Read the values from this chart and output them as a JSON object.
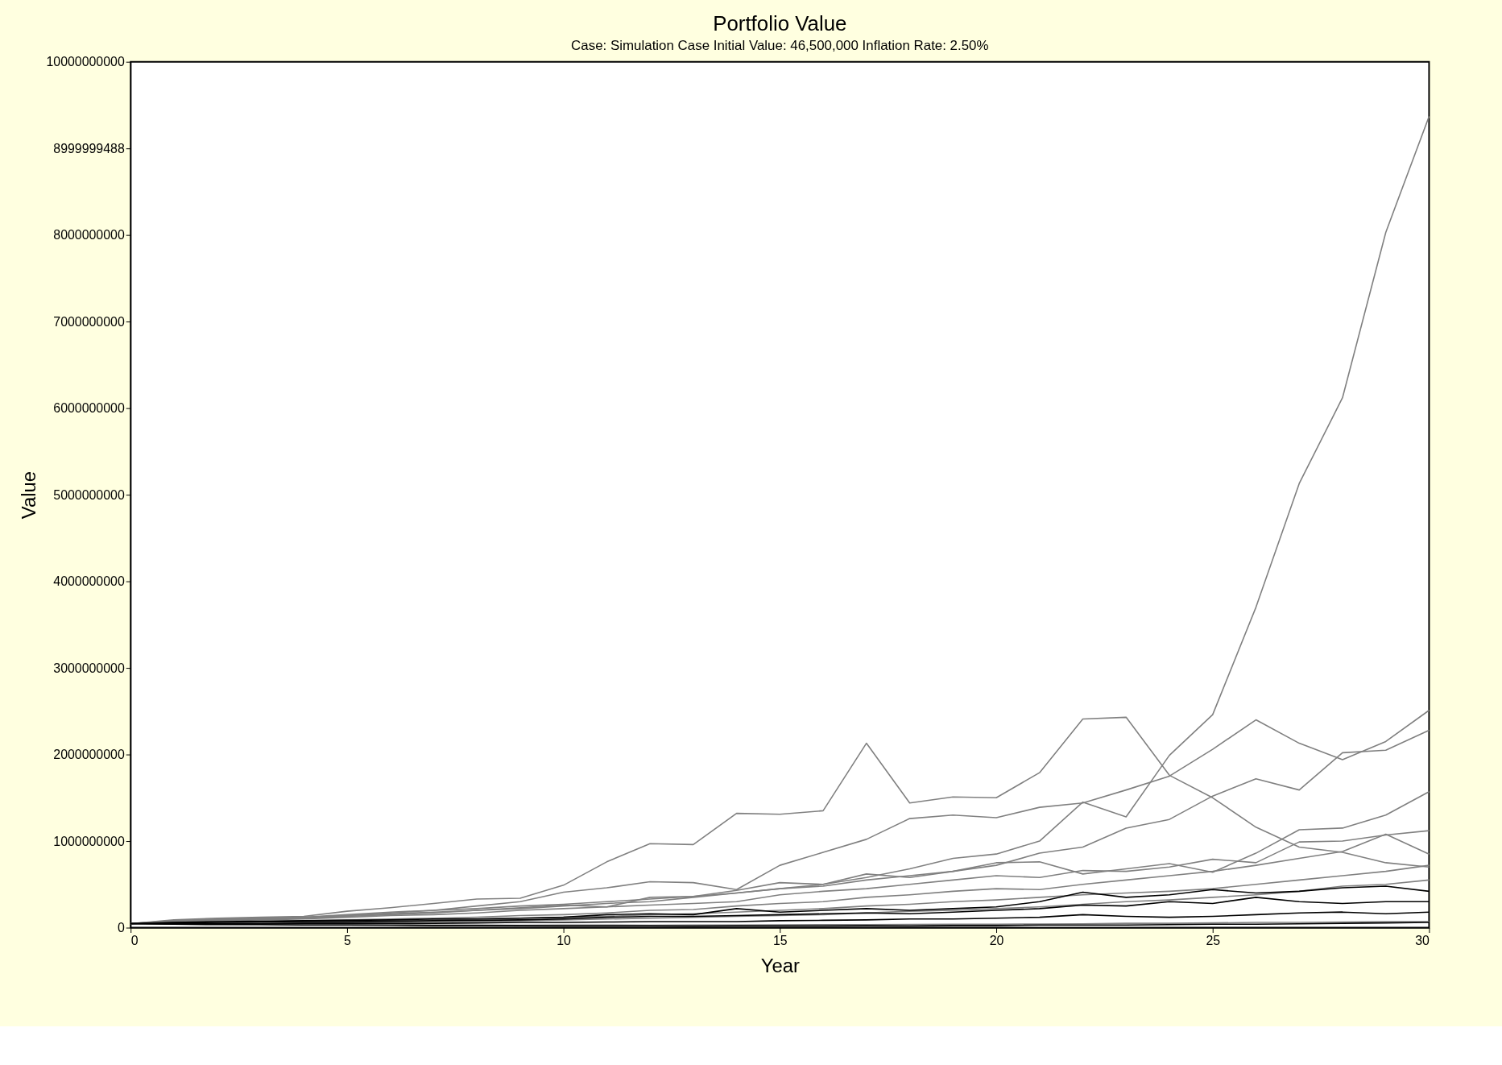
{
  "chart_data": {
    "type": "line",
    "title": "Portfolio Value",
    "subtitle": "Case: Simulation Case     Initial Value: 46,500,000     Inflation Rate: 2.50%",
    "xlabel": "Year",
    "ylabel": "Value",
    "x": [
      0,
      1,
      2,
      3,
      4,
      5,
      6,
      7,
      8,
      9,
      10,
      11,
      12,
      13,
      14,
      15,
      16,
      17,
      18,
      19,
      20,
      21,
      22,
      23,
      24,
      25,
      26,
      27,
      28,
      29,
      30
    ],
    "xlim": [
      0,
      30
    ],
    "xticks": [
      0,
      5,
      10,
      15,
      20,
      25,
      30
    ],
    "ylim": [
      0,
      10000000000
    ],
    "yticks": [
      0,
      1000000000,
      2000000000,
      3000000000,
      4000000000,
      5000000000,
      6000000000,
      7000000000,
      8000000000,
      8999999488,
      10000000000
    ],
    "grid": false,
    "line_style": "solid",
    "series": [
      {
        "color": "#808080",
        "values": [
          46500000.0,
          80000000.0,
          100000000.0,
          110000000.0,
          120000000.0,
          140000000.0,
          170000000.0,
          200000000.0,
          220000000.0,
          250000000.0,
          270000000.0,
          300000000.0,
          330000000.0,
          360000000.0,
          400000000.0,
          450000000.0,
          500000000.0,
          580000000.0,
          680000000.0,
          800000000.0,
          850000000.0,
          1000000000.0,
          1450000000.0,
          1280000000.0,
          1990000000.0,
          2460000000.0,
          3700000000.0,
          5130000000.0,
          6120000000.0,
          8030000000.0,
          9370000000.0
        ]
      },
      {
        "color": "#808080",
        "values": [
          46500000.0,
          90000000.0,
          110000000.0,
          120000000.0,
          130000000.0,
          190000000.0,
          230000000.0,
          280000000.0,
          330000000.0,
          340000000.0,
          490000000.0,
          760000000.0,
          970000000.0,
          960000000.0,
          1320000000.0,
          1310000000.0,
          1350000000.0,
          2130000000.0,
          1440000000.0,
          1510000000.0,
          1500000000.0,
          1790000000.0,
          2410000000.0,
          2430000000.0,
          1760000000.0,
          1500000000.0,
          1160000000.0,
          930000000.0,
          870000000.0,
          750000000.0,
          700000000.0
        ]
      },
      {
        "color": "#808080",
        "values": [
          46500000.0,
          80000000.0,
          100000000.0,
          110000000.0,
          120000000.0,
          150000000.0,
          180000000.0,
          200000000.0,
          250000000.0,
          300000000.0,
          410000000.0,
          460000000.0,
          530000000.0,
          520000000.0,
          440000000.0,
          720000000.0,
          870000000.0,
          1020000000.0,
          1260000000.0,
          1300000000.0,
          1270000000.0,
          1390000000.0,
          1440000000.0,
          1590000000.0,
          1750000000.0,
          2060000000.0,
          2400000000.0,
          2130000000.0,
          1940000000.0,
          2150000000.0,
          2510000000.0
        ]
      },
      {
        "color": "#808080",
        "values": [
          46500000.0,
          70000000.0,
          90000000.0,
          100000000.0,
          110000000.0,
          130000000.0,
          150000000.0,
          170000000.0,
          200000000.0,
          230000000.0,
          260000000.0,
          240000000.0,
          350000000.0,
          360000000.0,
          430000000.0,
          520000000.0,
          500000000.0,
          620000000.0,
          580000000.0,
          650000000.0,
          720000000.0,
          860000000.0,
          930000000.0,
          1150000000.0,
          1250000000.0,
          1520000000.0,
          1720000000.0,
          1590000000.0,
          2020000000.0,
          2050000000.0,
          2280000000.0
        ]
      },
      {
        "color": "#808080",
        "values": [
          46500000.0,
          70000000.0,
          90000000.0,
          100000000.0,
          110000000.0,
          140000000.0,
          160000000.0,
          180000000.0,
          200000000.0,
          220000000.0,
          250000000.0,
          280000000.0,
          300000000.0,
          350000000.0,
          400000000.0,
          450000000.0,
          480000000.0,
          550000000.0,
          600000000.0,
          650000000.0,
          750000000.0,
          760000000.0,
          620000000.0,
          680000000.0,
          740000000.0,
          640000000.0,
          860000000.0,
          1130000000.0,
          1150000000.0,
          1300000000.0,
          1570000000.0
        ]
      },
      {
        "color": "#808080",
        "values": [
          46500000.0,
          60000000.0,
          80000000.0,
          90000000.0,
          100000000.0,
          120000000.0,
          140000000.0,
          150000000.0,
          170000000.0,
          200000000.0,
          220000000.0,
          240000000.0,
          260000000.0,
          280000000.0,
          300000000.0,
          380000000.0,
          420000000.0,
          450000000.0,
          500000000.0,
          550000000.0,
          600000000.0,
          580000000.0,
          660000000.0,
          650000000.0,
          700000000.0,
          790000000.0,
          750000000.0,
          990000000.0,
          1000000000.0,
          1070000000.0,
          1120000000.0
        ]
      },
      {
        "color": "#808080",
        "values": [
          46500000.0,
          50000000.0,
          60000000.0,
          70000000.0,
          80000000.0,
          90000000.0,
          100000000.0,
          110000000.0,
          120000000.0,
          140000000.0,
          150000000.0,
          170000000.0,
          200000000.0,
          210000000.0,
          250000000.0,
          280000000.0,
          300000000.0,
          350000000.0,
          380000000.0,
          420000000.0,
          450000000.0,
          440000000.0,
          500000000.0,
          550000000.0,
          600000000.0,
          650000000.0,
          720000000.0,
          800000000.0,
          880000000.0,
          1080000000.0,
          850000000.0
        ]
      },
      {
        "color": "#808080",
        "values": [
          46500000.0,
          50000000.0,
          55000000.0,
          60000000.0,
          65000000.0,
          70000000.0,
          80000000.0,
          90000000.0,
          100000000.0,
          110000000.0,
          120000000.0,
          130000000.0,
          150000000.0,
          160000000.0,
          180000000.0,
          200000000.0,
          220000000.0,
          250000000.0,
          270000000.0,
          300000000.0,
          320000000.0,
          350000000.0,
          380000000.0,
          400000000.0,
          420000000.0,
          450000000.0,
          500000000.0,
          550000000.0,
          600000000.0,
          650000000.0,
          720000000.0
        ]
      },
      {
        "color": "#808080",
        "values": [
          46500000.0,
          45000000.0,
          50000000.0,
          50000000.0,
          55000000.0,
          60000000.0,
          65000000.0,
          70000000.0,
          75000000.0,
          80000000.0,
          90000000.0,
          100000000.0,
          110000000.0,
          120000000.0,
          130000000.0,
          140000000.0,
          150000000.0,
          170000000.0,
          190000000.0,
          200000000.0,
          220000000.0,
          240000000.0,
          270000000.0,
          300000000.0,
          320000000.0,
          350000000.0,
          380000000.0,
          420000000.0,
          480000000.0,
          500000000.0,
          550000000.0
        ]
      },
      {
        "color": "#808080",
        "values": [
          46500000.0,
          40000000.0,
          40000000.0,
          38000000.0,
          35000000.0,
          35000000.0,
          33000000.0,
          30000000.0,
          30000000.0,
          28000000.0,
          30000000.0,
          30000000.0,
          28000000.0,
          30000000.0,
          30000000.0,
          32000000.0,
          35000000.0,
          35000000.0,
          38000000.0,
          40000000.0,
          40000000.0,
          42000000.0,
          45000000.0,
          50000000.0,
          50000000.0,
          55000000.0,
          60000000.0,
          60000000.0,
          65000000.0,
          70000000.0,
          70000000.0
        ]
      },
      {
        "color": "#000000",
        "values": [
          46500000.0,
          60000000.0,
          70000000.0,
          75000000.0,
          80000000.0,
          85000000.0,
          90000000.0,
          100000000.0,
          100000000.0,
          110000000.0,
          120000000.0,
          150000000.0,
          160000000.0,
          150000000.0,
          220000000.0,
          180000000.0,
          200000000.0,
          220000000.0,
          200000000.0,
          220000000.0,
          240000000.0,
          300000000.0,
          410000000.0,
          350000000.0,
          380000000.0,
          440000000.0,
          400000000.0,
          420000000.0,
          460000000.0,
          480000000.0,
          420000000.0
        ]
      },
      {
        "color": "#000000",
        "values": [
          46500000.0,
          55000000.0,
          60000000.0,
          65000000.0,
          70000000.0,
          70000000.0,
          75000000.0,
          80000000.0,
          85000000.0,
          90000000.0,
          100000000.0,
          120000000.0,
          130000000.0,
          130000000.0,
          140000000.0,
          150000000.0,
          160000000.0,
          170000000.0,
          160000000.0,
          180000000.0,
          200000000.0,
          220000000.0,
          260000000.0,
          250000000.0,
          300000000.0,
          280000000.0,
          350000000.0,
          300000000.0,
          280000000.0,
          300000000.0,
          300000000.0
        ]
      },
      {
        "color": "#000000",
        "values": [
          46500000.0,
          45000000.0,
          45000000.0,
          45000000.0,
          50000000.0,
          50000000.0,
          50000000.0,
          50000000.0,
          55000000.0,
          60000000.0,
          60000000.0,
          65000000.0,
          70000000.0,
          70000000.0,
          70000000.0,
          80000000.0,
          85000000.0,
          90000000.0,
          100000000.0,
          100000000.0,
          110000000.0,
          120000000.0,
          150000000.0,
          130000000.0,
          120000000.0,
          130000000.0,
          150000000.0,
          170000000.0,
          180000000.0,
          160000000.0,
          180000000.0
        ]
      },
      {
        "color": "#000000",
        "values": [
          46500000.0,
          40000000.0,
          35000000.0,
          35000000.0,
          30000000.0,
          30000000.0,
          28000000.0,
          25000000.0,
          25000000.0,
          22000000.0,
          20000000.0,
          20000000.0,
          20000000.0,
          18000000.0,
          20000000.0,
          20000000.0,
          20000000.0,
          22000000.0,
          20000000.0,
          25000000.0,
          25000000.0,
          30000000.0,
          30000000.0,
          30000000.0,
          35000000.0,
          40000000.0,
          40000000.0,
          45000000.0,
          50000000.0,
          55000000.0,
          60000000.0
        ]
      }
    ]
  }
}
